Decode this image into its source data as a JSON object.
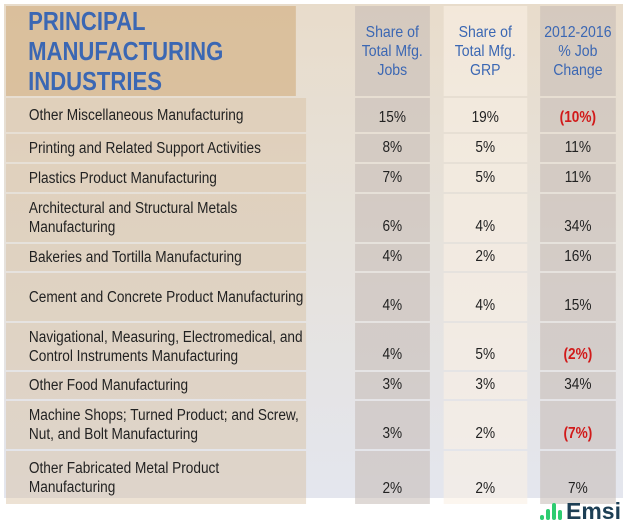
{
  "header": {
    "title": "PRINCIPAL MANUFACTURING INDUSTRIES",
    "col1": "Share of Total Mfg. Jobs",
    "col2": "Share of Total Mfg. GRP",
    "col3": "2012-2016 % Job Change"
  },
  "rows": [
    {
      "name": "Other Miscellaneous Manufacturing",
      "jobs": "15%",
      "grp": "19%",
      "change": "(10%)",
      "negative": true
    },
    {
      "name": "Printing and Related Support Activities",
      "jobs": "8%",
      "grp": "5%",
      "change": "11%"
    },
    {
      "name": "Plastics Product Manufacturing",
      "jobs": "7%",
      "grp": "5%",
      "change": "11%"
    },
    {
      "name": "Architectural and Structural Metals Manufacturing",
      "jobs": "6%",
      "grp": "4%",
      "change": "34%"
    },
    {
      "name": "Bakeries and Tortilla Manufacturing",
      "jobs": "4%",
      "grp": "2%",
      "change": "16%"
    },
    {
      "name": "Cement and Concrete Product Manufacturing",
      "jobs": "4%",
      "grp": "4%",
      "change": "15%"
    },
    {
      "name": "Navigational, Measuring, Electromedical, and Control Instruments Manufacturing",
      "jobs": "4%",
      "grp": "5%",
      "change": "(2%)",
      "negative": true
    },
    {
      "name": "Other Food Manufacturing",
      "jobs": "3%",
      "grp": "3%",
      "change": "34%"
    },
    {
      "name": "Machine Shops; Turned Product; and Screw, Nut, and Bolt Manufacturing",
      "jobs": "3%",
      "grp": "2%",
      "change": "(7%)",
      "negative": true
    },
    {
      "name": "Other Fabricated Metal Product Manufacturing",
      "jobs": "2%",
      "grp": "2%",
      "change": "7%"
    }
  ],
  "logo": {
    "text": "Emsi"
  },
  "colors": {
    "title": "#3b67b3",
    "negative": "#d11a1a",
    "logo_bars": "#2ecc71",
    "logo_text": "#1d3f55"
  }
}
